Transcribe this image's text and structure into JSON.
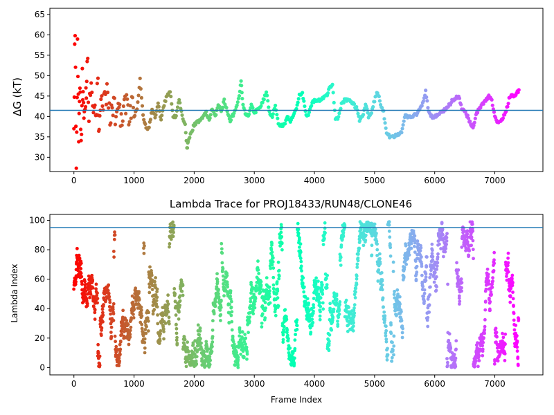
{
  "chart_data": [
    {
      "type": "scatter",
      "title": "",
      "xlabel": "",
      "ylabel": "ΔG (kT)",
      "xlim": [
        -400,
        7800
      ],
      "ylim": [
        26.5,
        66.5
      ],
      "x_ticks": [
        0,
        1000,
        2000,
        3000,
        4000,
        5000,
        6000,
        7000
      ],
      "y_ticks": [
        30,
        35,
        40,
        45,
        50,
        55,
        60,
        65
      ],
      "reference_line": {
        "y": 41.5,
        "color": "#1f77b4"
      },
      "colormap": "rainbow (red at frame 0 to violet at frame 7400)",
      "trace_points": [
        [
          0,
          41
        ],
        [
          20,
          63
        ],
        [
          40,
          30
        ],
        [
          60,
          55
        ],
        [
          80,
          36
        ],
        [
          100,
          48
        ],
        [
          120,
          33
        ],
        [
          140,
          51
        ],
        [
          160,
          40
        ],
        [
          180,
          45
        ],
        [
          200,
          44
        ],
        [
          220,
          56
        ],
        [
          250,
          42
        ],
        [
          300,
          47
        ],
        [
          350,
          39
        ],
        [
          400,
          49
        ],
        [
          420,
          33
        ],
        [
          450,
          44
        ],
        [
          500,
          43
        ],
        [
          550,
          46
        ],
        [
          600,
          40
        ],
        [
          650,
          44
        ],
        [
          700,
          41
        ],
        [
          750,
          46
        ],
        [
          800,
          36
        ],
        [
          850,
          42
        ],
        [
          900,
          41
        ],
        [
          950,
          42
        ],
        [
          1000,
          40
        ],
        [
          1050,
          42
        ],
        [
          1100,
          49
        ],
        [
          1150,
          40
        ],
        [
          1200,
          37
        ],
        [
          1250,
          37
        ],
        [
          1300,
          42
        ],
        [
          1350,
          40
        ],
        [
          1400,
          43
        ],
        [
          1450,
          39
        ],
        [
          1500,
          43
        ],
        [
          1550,
          45
        ],
        [
          1600,
          46
        ],
        [
          1650,
          40
        ],
        [
          1700,
          40
        ],
        [
          1750,
          44
        ],
        [
          1800,
          40
        ],
        [
          1850,
          38
        ],
        [
          1880,
          32
        ],
        [
          1900,
          34
        ],
        [
          1950,
          36
        ],
        [
          2000,
          38
        ],
        [
          2100,
          39
        ],
        [
          2200,
          41
        ],
        [
          2250,
          39
        ],
        [
          2300,
          42
        ],
        [
          2350,
          40
        ],
        [
          2400,
          43
        ],
        [
          2450,
          41
        ],
        [
          2500,
          44
        ],
        [
          2550,
          41
        ],
        [
          2600,
          39
        ],
        [
          2700,
          42
        ],
        [
          2750,
          45
        ],
        [
          2780,
          49
        ],
        [
          2800,
          44
        ],
        [
          2850,
          41
        ],
        [
          2900,
          40
        ],
        [
          2950,
          43
        ],
        [
          3000,
          41
        ],
        [
          3100,
          42
        ],
        [
          3150,
          44
        ],
        [
          3200,
          46
        ],
        [
          3250,
          41
        ],
        [
          3300,
          40
        ],
        [
          3350,
          43
        ],
        [
          3400,
          38
        ],
        [
          3500,
          38
        ],
        [
          3550,
          40
        ],
        [
          3600,
          39
        ],
        [
          3700,
          42
        ],
        [
          3750,
          45
        ],
        [
          3800,
          46
        ],
        [
          3850,
          41
        ],
        [
          3900,
          40
        ],
        [
          3950,
          43
        ],
        [
          4000,
          44
        ],
        [
          4100,
          44
        ],
        [
          4200,
          45
        ],
        [
          4250,
          47
        ],
        [
          4300,
          48
        ],
        [
          4350,
          39
        ],
        [
          4400,
          40
        ],
        [
          4450,
          43
        ],
        [
          4500,
          44
        ],
        [
          4600,
          44
        ],
        [
          4700,
          42
        ],
        [
          4750,
          39
        ],
        [
          4800,
          40
        ],
        [
          4850,
          43
        ],
        [
          4900,
          40
        ],
        [
          4950,
          41
        ],
        [
          5000,
          44
        ],
        [
          5050,
          46
        ],
        [
          5100,
          43
        ],
        [
          5150,
          41
        ],
        [
          5200,
          36
        ],
        [
          5250,
          35
        ],
        [
          5300,
          35
        ],
        [
          5400,
          35.5
        ],
        [
          5450,
          36
        ],
        [
          5500,
          40
        ],
        [
          5600,
          40
        ],
        [
          5700,
          40.5
        ],
        [
          5800,
          43
        ],
        [
          5850,
          46
        ],
        [
          5900,
          41
        ],
        [
          5950,
          40
        ],
        [
          6000,
          40
        ],
        [
          6100,
          41
        ],
        [
          6200,
          42
        ],
        [
          6300,
          44
        ],
        [
          6400,
          45
        ],
        [
          6450,
          42
        ],
        [
          6500,
          41
        ],
        [
          6550,
          40
        ],
        [
          6600,
          38
        ],
        [
          6650,
          37.5
        ],
        [
          6700,
          41
        ],
        [
          6800,
          43
        ],
        [
          6900,
          45
        ],
        [
          6950,
          44
        ],
        [
          7000,
          40
        ],
        [
          7050,
          38.5
        ],
        [
          7100,
          38.5
        ],
        [
          7150,
          40
        ],
        [
          7200,
          42
        ],
        [
          7250,
          45
        ],
        [
          7300,
          45
        ],
        [
          7350,
          45.5
        ],
        [
          7400,
          46.5
        ]
      ]
    },
    {
      "type": "scatter",
      "title": "Lambda Trace for PROJ18433/RUN48/CLONE46",
      "xlabel": "Frame Index",
      "ylabel": "Lambda Index",
      "xlim": [
        -400,
        7800
      ],
      "ylim": [
        -5,
        104
      ],
      "x_ticks": [
        0,
        1000,
        2000,
        3000,
        4000,
        5000,
        6000,
        7000
      ],
      "y_ticks": [
        0,
        20,
        40,
        60,
        80,
        100
      ],
      "reference_line": {
        "y": 95,
        "color": "#1f77b4"
      },
      "colormap": "rainbow (red at frame 0 to violet at frame 7400)",
      "frame_range": [
        0,
        7400
      ],
      "lambda_range": [
        0,
        99
      ]
    }
  ]
}
